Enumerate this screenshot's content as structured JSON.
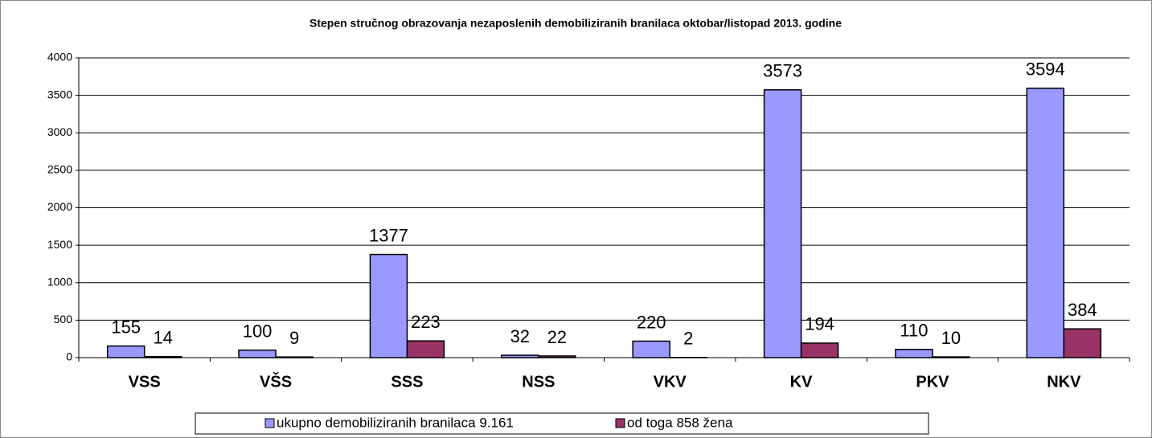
{
  "chart_data": {
    "type": "bar",
    "title": "Stepen stručnog obrazovanja nezaposlenih demobiliziranih branilaca  oktobar/listopad 2013. godine",
    "categories": [
      "VSS",
      "VŠS",
      "SSS",
      "NSS",
      "VKV",
      "KV",
      "PKV",
      "NKV"
    ],
    "series": [
      {
        "name": "ukupno demobiliziranih branilaca 9.161",
        "color": "#9999ff",
        "values": [
          155,
          100,
          1377,
          32,
          220,
          3573,
          110,
          3594
        ]
      },
      {
        "name": "od toga 858 žena",
        "color": "#993366",
        "values": [
          14,
          9,
          223,
          22,
          2,
          194,
          10,
          384
        ]
      }
    ],
    "ylim": [
      0,
      4000
    ],
    "yticks": [
      0,
      500,
      1000,
      1500,
      2000,
      2500,
      3000,
      3500,
      4000
    ],
    "grid": true,
    "legend": "bottom"
  }
}
